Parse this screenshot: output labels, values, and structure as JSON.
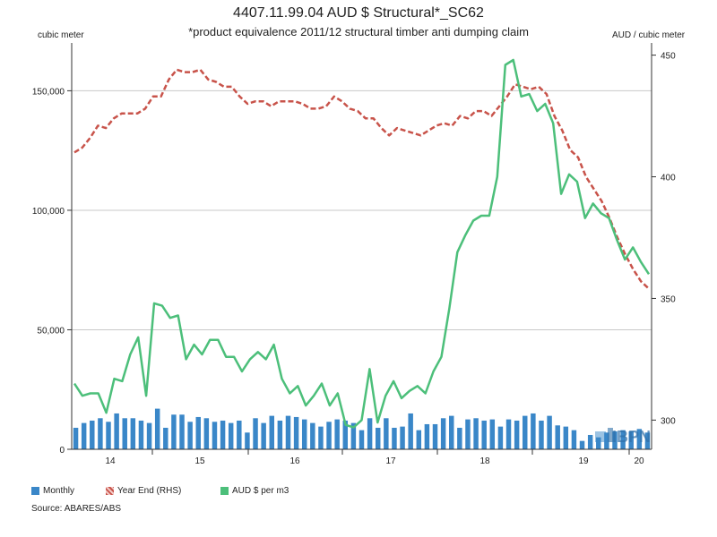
{
  "chart_data": {
    "type": "bar+line",
    "title": "4407.11.99.04 AUD $ Structural*_SC62",
    "subtitle": "*product equivalence 2011/12 structural timber anti dumping claim",
    "ylabel_left": "cubic meter",
    "ylabel_right": "AUD / cubic meter",
    "ylim_left": [
      0,
      170000
    ],
    "ylim_right": [
      288,
      455
    ],
    "yticks_left": [
      "0",
      "50,000",
      "100,000",
      "150,000"
    ],
    "yticks_right": [
      "300",
      "350",
      "400",
      "450"
    ],
    "xticks": [
      "14",
      "15",
      "16",
      "17",
      "18",
      "19",
      "20"
    ],
    "grid": true,
    "legend_position": "bottom-left",
    "series": [
      {
        "name": "Monthly",
        "axis": "left",
        "color": "#3a87c8",
        "values": [
          9000,
          11000,
          12000,
          13000,
          11500,
          15000,
          13000,
          13000,
          12000,
          11000,
          17000,
          9000,
          14500,
          14500,
          11500,
          13500,
          13000,
          11500,
          12000,
          11000,
          12000,
          7000,
          13000,
          11000,
          14000,
          12000,
          14000,
          13500,
          12500,
          11000,
          9500,
          11500,
          12500,
          12000,
          11000,
          8000,
          13000,
          9000,
          13000,
          9000,
          9500,
          15000,
          8000,
          10500,
          10500,
          13000,
          14000,
          9000,
          12500,
          13000,
          12000,
          12500,
          9500,
          12500,
          12000,
          14000,
          15000,
          12000,
          14000,
          10000,
          9500,
          8000,
          3500,
          6000,
          5000,
          7000,
          7500,
          8000,
          7500,
          8500,
          7000
        ]
      },
      {
        "name": "Year End (RHS)",
        "axis": "right",
        "color": "#c8534a",
        "dashed": true,
        "values": [
          410,
          412,
          416,
          421,
          420,
          424,
          426,
          426,
          426,
          428,
          433,
          433,
          440,
          444,
          443,
          443,
          444,
          440,
          439,
          437,
          437,
          433,
          430,
          431,
          431,
          429,
          431,
          431,
          431,
          430,
          428,
          428,
          429,
          433,
          431,
          428,
          427,
          424,
          424,
          420,
          417,
          420,
          419,
          418,
          417,
          419,
          421,
          422,
          421,
          425,
          424,
          427,
          427,
          425,
          429,
          433,
          438,
          437,
          436,
          437,
          434,
          425,
          419,
          411,
          408,
          400,
          395,
          390,
          383,
          375,
          368,
          362,
          357,
          354
        ]
      },
      {
        "name": "AUD $ per m3",
        "axis": "right",
        "color": "#4cbf7a",
        "values": [
          315,
          310,
          311,
          311,
          303,
          317,
          316,
          327,
          334,
          310,
          348,
          347,
          342,
          343,
          325,
          331,
          327,
          333,
          333,
          326,
          326,
          320,
          325,
          328,
          325,
          331,
          317,
          311,
          314,
          306,
          310,
          315,
          306,
          311,
          298,
          297,
          300,
          321,
          299,
          310,
          316,
          309,
          312,
          314,
          311,
          320,
          326,
          346,
          369,
          376,
          382,
          384,
          384,
          400,
          446,
          448,
          433,
          434,
          427,
          430,
          422,
          393,
          401,
          398,
          383,
          389,
          385,
          383,
          374,
          366,
          371,
          365,
          360
        ]
      }
    ]
  },
  "legend": {
    "items": [
      "Monthly",
      "Year End (RHS)",
      "AUD $ per m3"
    ]
  },
  "source": "Source: ABARES/ABS",
  "logo_text": "IBPN"
}
